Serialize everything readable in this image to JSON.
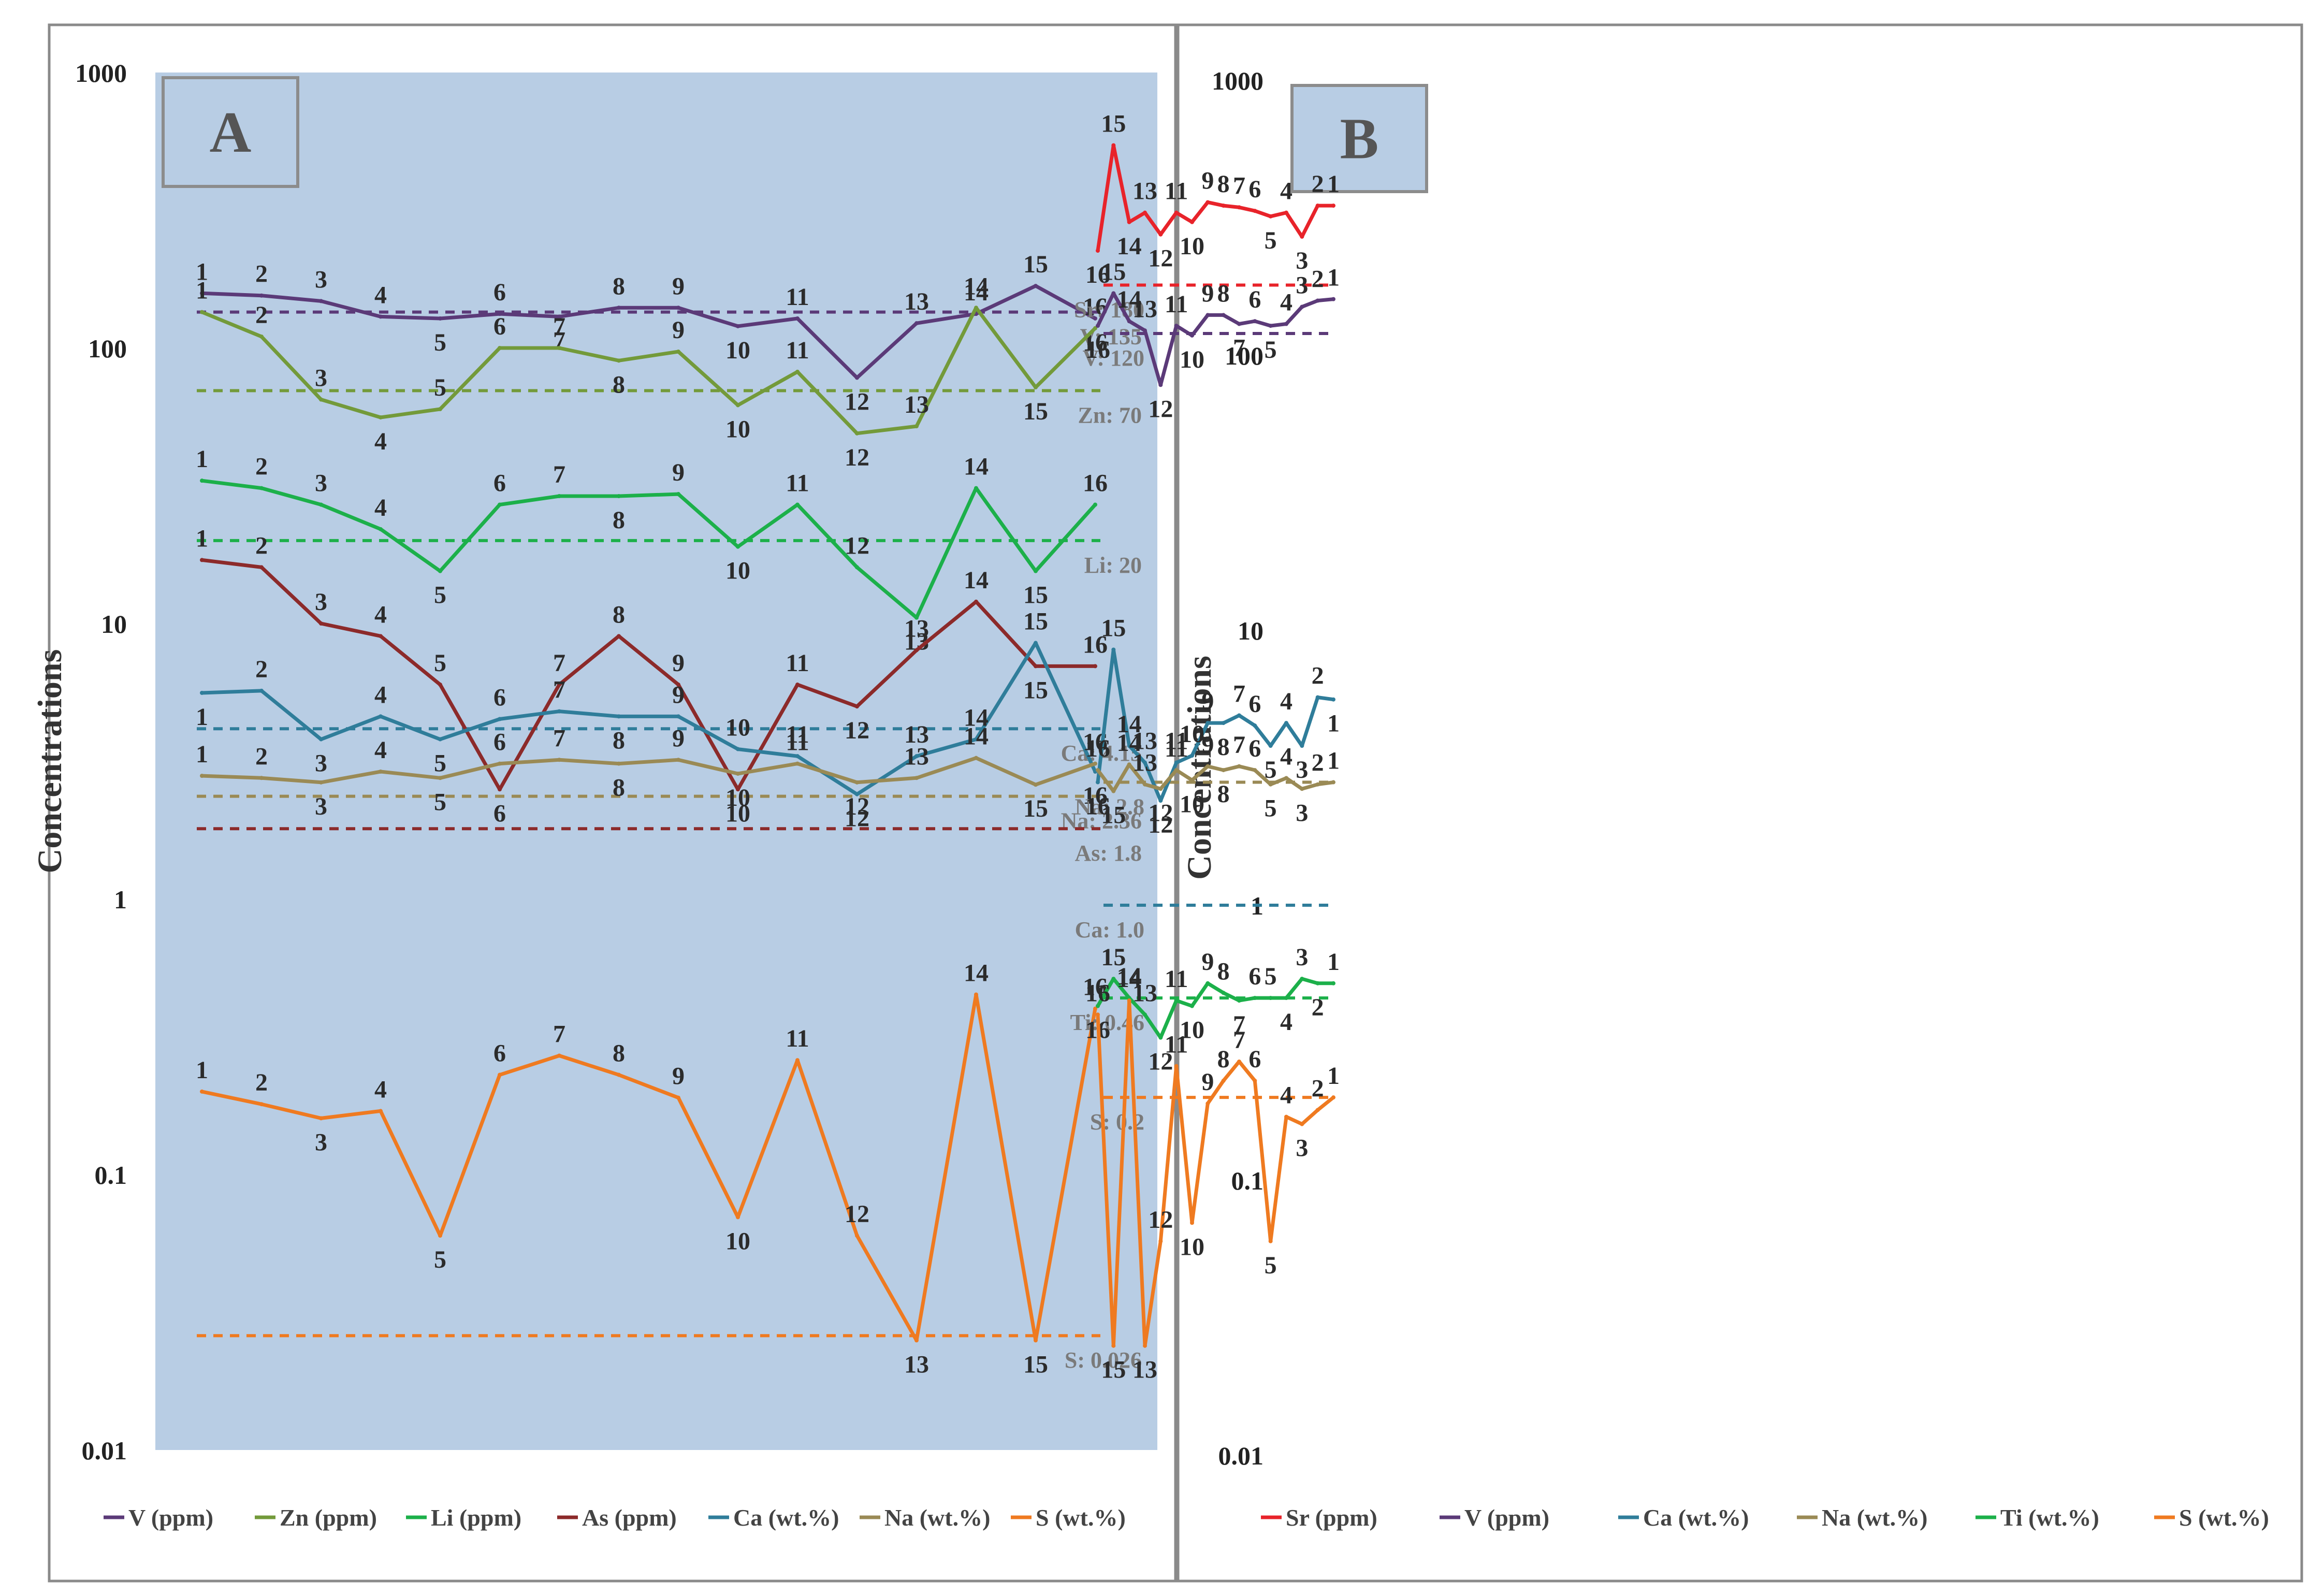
{
  "chart_data": [
    {
      "type": "line",
      "panel_label": "A",
      "ylabel": "Concentrations",
      "yscale": "log",
      "ylim": [
        0.01,
        1000
      ],
      "yticks": [
        "0.01",
        "0.1",
        "1",
        "10",
        "100",
        "1000"
      ],
      "x": [
        1,
        2,
        3,
        4,
        5,
        6,
        7,
        8,
        9,
        10,
        11,
        12,
        13,
        14,
        15,
        16
      ],
      "series": [
        {
          "name": "V (ppm)",
          "color": "#5b3a78",
          "values": [
            158,
            155,
            148,
            130,
            128,
            133,
            130,
            140,
            140,
            120,
            128,
            78,
            123,
            133,
            168,
            128
          ]
        },
        {
          "name": "Zn (ppm)",
          "color": "#739a3a",
          "values": [
            135,
            110,
            65,
            56,
            60,
            100,
            100,
            90,
            97,
            62,
            82,
            49,
            52,
            140,
            72,
            118
          ]
        },
        {
          "name": "Li (ppm)",
          "color": "#1cb04a",
          "values": [
            33,
            31,
            27,
            22,
            15.5,
            27,
            29,
            29,
            29.5,
            19,
            27,
            16,
            10.5,
            31,
            15.5,
            27
          ]
        },
        {
          "name": "As (ppm)",
          "color": "#8c2a2a",
          "values": [
            17,
            16,
            10,
            9,
            6,
            2.5,
            6,
            9,
            6,
            2.5,
            6,
            5,
            8,
            12,
            7,
            7
          ]
        },
        {
          "name": "Ca (wt.%)",
          "color": "#2f7d9a",
          "values": [
            5.6,
            5.7,
            3.8,
            4.6,
            3.8,
            4.5,
            4.8,
            4.6,
            4.6,
            3.5,
            3.3,
            2.4,
            3.3,
            3.8,
            8.5,
            2.9
          ]
        },
        {
          "name": "Na (wt.%)",
          "color": "#9a8a55",
          "values": [
            2.8,
            2.75,
            2.65,
            2.9,
            2.75,
            3.1,
            3.2,
            3.1,
            3.2,
            2.85,
            3.1,
            2.65,
            2.75,
            3.25,
            2.6,
            3.1
          ]
        },
        {
          "name": "S (wt.%)",
          "color": "#ef7a20",
          "values": [
            0.2,
            0.18,
            0.16,
            0.17,
            0.06,
            0.23,
            0.27,
            0.23,
            0.19,
            0.07,
            0.26,
            0.06,
            0.025,
            0.45,
            0.025,
            0.4
          ]
        }
      ],
      "reference_lines": [
        {
          "label": "V: 135",
          "value": 135,
          "color": "#5b3a78"
        },
        {
          "label": "Zn: 70",
          "value": 70,
          "color": "#739a3a"
        },
        {
          "label": "Li: 20",
          "value": 20,
          "color": "#1cb04a"
        },
        {
          "label": "Ca: 4.15",
          "value": 4.15,
          "color": "#2f7d9a"
        },
        {
          "label": "Na: 2.36",
          "value": 2.36,
          "color": "#9a8a55"
        },
        {
          "label": "As: 1.8",
          "value": 1.8,
          "color": "#8c2a2a"
        },
        {
          "label": "S: 0.026",
          "value": 0.026,
          "color": "#ef7a20"
        }
      ],
      "legend": [
        "V (ppm)",
        "Zn (ppm)",
        "Li (ppm)",
        "As (ppm)",
        "Ca (wt.%)",
        "Na (wt.%)",
        "S (wt.%)"
      ],
      "legend_position": "bottom"
    },
    {
      "type": "line",
      "panel_label": "B",
      "ylabel": "Concentrations",
      "yscale": "log",
      "ylim": [
        0.01,
        1000
      ],
      "yticks": [
        "0.01",
        "0.1",
        "1",
        "10",
        "100",
        "1000"
      ],
      "x": [
        1,
        2,
        3,
        4,
        5,
        6,
        7,
        8,
        9,
        10,
        11,
        12,
        13,
        14,
        15,
        16
      ],
      "series": [
        {
          "name": "Sr (ppm)",
          "color": "#e8232a",
          "values": [
            350,
            350,
            270,
            330,
            320,
            335,
            345,
            350,
            360,
            305,
            330,
            275,
            330,
            305,
            580,
            240
          ]
        },
        {
          "name": "V (ppm)",
          "color": "#5b3a78",
          "values": [
            160,
            158,
            150,
            130,
            128,
            133,
            130,
            140,
            140,
            118,
            128,
            78,
            123,
            133,
            168,
            128
          ]
        },
        {
          "name": "Ca (wt.%)",
          "color": "#2f7d9a",
          "values": [
            5.6,
            5.7,
            3.8,
            4.6,
            3.8,
            4.5,
            4.9,
            4.6,
            4.6,
            3.5,
            3.3,
            2.4,
            3.3,
            3.8,
            8.5,
            2.8
          ]
        },
        {
          "name": "Na (wt.%)",
          "color": "#9a8a55",
          "values": [
            2.8,
            2.75,
            2.65,
            2.9,
            2.75,
            3.1,
            3.2,
            3.1,
            3.2,
            2.85,
            3.1,
            2.65,
            2.75,
            3.25,
            2.6,
            3.1
          ]
        },
        {
          "name": "Ti (wt.%)",
          "color": "#1cb04a",
          "values": [
            0.52,
            0.52,
            0.54,
            0.46,
            0.46,
            0.46,
            0.45,
            0.48,
            0.52,
            0.43,
            0.45,
            0.33,
            0.4,
            0.46,
            0.54,
            0.43
          ]
        },
        {
          "name": "S (wt.%)",
          "color": "#ef7a20",
          "values": [
            0.2,
            0.18,
            0.16,
            0.17,
            0.06,
            0.23,
            0.27,
            0.23,
            0.19,
            0.07,
            0.26,
            0.06,
            0.025,
            0.45,
            0.025,
            0.4
          ]
        }
      ],
      "reference_lines": [
        {
          "label": "Sr: 180",
          "value": 180,
          "color": "#e8232a"
        },
        {
          "label": "V: 120",
          "value": 120,
          "color": "#5b3a78"
        },
        {
          "label": "Na: 2.8",
          "value": 2.8,
          "color": "#9a8a55"
        },
        {
          "label": "Ca: 1.0",
          "value": 1.0,
          "color": "#2f7d9a"
        },
        {
          "label": "Ti: 0.46",
          "value": 0.46,
          "color": "#1cb04a"
        },
        {
          "label": "S: 0.2",
          "value": 0.2,
          "color": "#ef7a20"
        }
      ],
      "legend": [
        "Sr (ppm)",
        "V (ppm)",
        "Ca (wt.%)",
        "Na (wt.%)",
        "Ti (wt.%)",
        "S (wt.%)"
      ],
      "legend_position": "bottom"
    }
  ]
}
